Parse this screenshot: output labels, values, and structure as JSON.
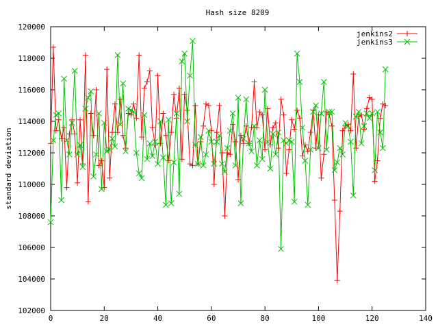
{
  "chart_data": {
    "type": "line",
    "title": "Hash size 8209",
    "xlabel": "",
    "ylabel": "standard deviation",
    "xlim": [
      0,
      140
    ],
    "ylim": [
      102000,
      120000
    ],
    "xticks": [
      0,
      20,
      40,
      60,
      80,
      100,
      120,
      140
    ],
    "yticks": [
      102000,
      104000,
      106000,
      108000,
      110000,
      112000,
      114000,
      116000,
      118000,
      120000
    ],
    "grid": false,
    "legend_position": "top-right",
    "series": [
      {
        "name": "jenkins2",
        "color": "#ff0000",
        "marker": "+",
        "values": [
          112600,
          118700,
          113400,
          114100,
          112900,
          113600,
          109800,
          113200,
          114100,
          113200,
          110100,
          114100,
          111300,
          118200,
          108900,
          114500,
          113100,
          116000,
          111200,
          111500,
          109800,
          117300,
          110400,
          113300,
          115100,
          113300,
          115400,
          113100,
          112300,
          114500,
          114400,
          115100,
          114200,
          118200,
          113000,
          116100,
          116500,
          117200,
          113600,
          112500,
          116900,
          112600,
          114500,
          113100,
          111500,
          113300,
          115700,
          114200,
          116100,
          111600,
          115700,
          114700,
          111300,
          111200,
          115000,
          111300,
          112700,
          113700,
          115100,
          115000,
          113400,
          110000,
          113300,
          115000,
          112000,
          108000,
          112000,
          111900,
          113800,
          112700,
          110300,
          113100,
          112600,
          113700,
          112600,
          113600,
          116500,
          113600,
          114600,
          114400,
          112200,
          114800,
          112500,
          113600,
          113900,
          112300,
          115400,
          114400,
          110700,
          112200,
          114100,
          113500,
          114700,
          114200,
          111800,
          112500,
          112100,
          113300,
          114700,
          112300,
          114400,
          110400,
          111900,
          114600,
          114400,
          113700,
          109000,
          103900,
          108300,
          113400,
          113700,
          113800,
          113400,
          117000,
          112300,
          114300,
          114400,
          113500,
          114800,
          115500,
          115400,
          110200,
          111500,
          114200,
          115100,
          115000
        ]
      },
      {
        "name": "jenkins3",
        "color": "#00c000",
        "marker": "x",
        "values": [
          107600,
          112800,
          114400,
          114500,
          109000,
          116700,
          112800,
          111900,
          113900,
          117200,
          111900,
          112500,
          111100,
          114800,
          115500,
          115900,
          110500,
          111900,
          114500,
          109700,
          113900,
          112100,
          112200,
          112900,
          112400,
          118200,
          113800,
          116400,
          112100,
          114800,
          114700,
          114600,
          112000,
          110700,
          110400,
          114400,
          111600,
          112600,
          111800,
          112700,
          111300,
          114000,
          111700,
          108700,
          114100,
          108800,
          111400,
          114500,
          109400,
          117800,
          118300,
          114000,
          116900,
          119100,
          112500,
          111300,
          113000,
          111200,
          111900,
          113400,
          112700,
          111300,
          112700,
          113100,
          111300,
          110800,
          112300,
          113400,
          114500,
          111200,
          115500,
          108800,
          112900,
          115400,
          112600,
          112100,
          113700,
          111200,
          112800,
          111600,
          116000,
          112700,
          111000,
          113200,
          111900,
          113300,
          105900,
          112800,
          112600,
          112800,
          112700,
          108900,
          118300,
          116500,
          113600,
          111500,
          108700,
          112200,
          114600,
          115000,
          112300,
          114500,
          116500,
          112200,
          114600,
          114600,
          110900,
          111400,
          112300,
          111900,
          113900,
          113700,
          112700,
          109300,
          114300,
          114600,
          112600,
          113700,
          114500,
          114200,
          114500,
          110900,
          114600,
          113300,
          112300,
          117300
        ]
      }
    ]
  }
}
